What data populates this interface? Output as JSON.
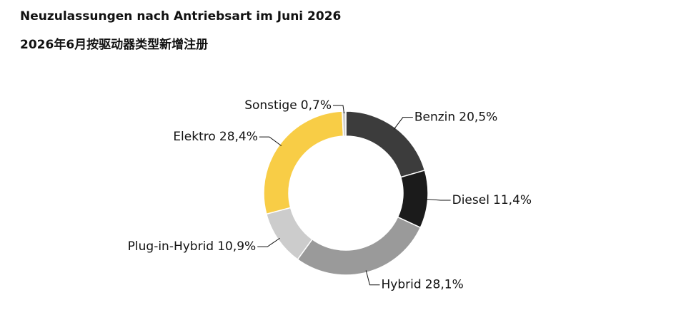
{
  "chart_data": {
    "type": "donut",
    "title": "Neuzulassungen nach Antriebsart im Juni 2026",
    "subtitle": "2026年6月按驱动器类型新增注册",
    "categories": [
      "Benzin",
      "Diesel",
      "Hybrid",
      "Plug-in-Hybrid",
      "Elektro",
      "Sonstige"
    ],
    "values": [
      20.5,
      11.4,
      28.1,
      10.9,
      28.4,
      0.7
    ],
    "value_labels": [
      "20,5%",
      "11,4%",
      "28,1%",
      "10,9%",
      "28,4%",
      "0,7%"
    ],
    "colors": [
      "#3c3c3c",
      "#1b1b1b",
      "#9a9a9a",
      "#cccccc",
      "#f8cd46",
      "#cfcfcf"
    ]
  }
}
